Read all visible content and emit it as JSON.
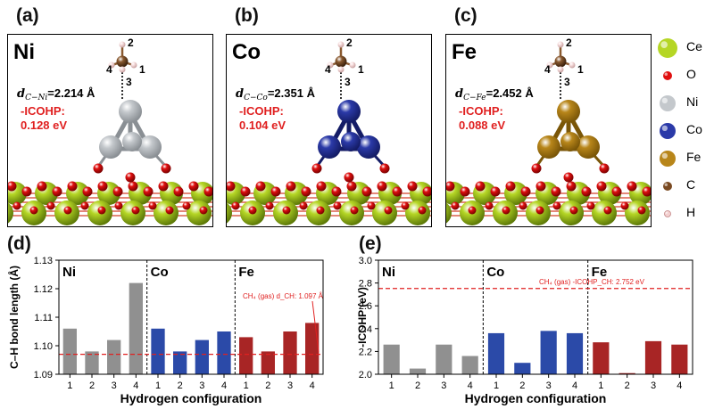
{
  "panels": [
    {
      "label": "(a)",
      "metal": "Ni",
      "dist_sym": "d",
      "dist_sub": "C−Ni",
      "dist_val": "=2.214 Å",
      "icohp_label": "-ICOHP:",
      "icohp_val": "0.128 eV",
      "cluster_color": "#c4c8cc",
      "cluster_dark": "#8a8f94",
      "h_labels": [
        "2",
        "4",
        "1",
        "3"
      ]
    },
    {
      "label": "(b)",
      "metal": "Co",
      "dist_sym": "d",
      "dist_sub": "C−Co",
      "dist_val": "=2.351 Å",
      "icohp_label": "-ICOHP:",
      "icohp_val": "0.104 eV",
      "cluster_color": "#2b3aa8",
      "cluster_dark": "#141c66",
      "h_labels": [
        "2",
        "4",
        "1",
        "3"
      ]
    },
    {
      "label": "(c)",
      "metal": "Fe",
      "dist_sym": "d",
      "dist_sub": "C−Fe",
      "dist_val": "=2.452 Å",
      "icohp_label": "-ICOHP:",
      "icohp_val": "0.088 eV",
      "cluster_color": "#b8861a",
      "cluster_dark": "#7a5608",
      "h_labels": [
        "2",
        "4",
        "1",
        "3"
      ]
    }
  ],
  "legend": [
    {
      "name": "Ce",
      "color": "#b5d625",
      "size": "large"
    },
    {
      "name": "O",
      "color": "#e01010",
      "size": "small"
    },
    {
      "name": "Ni",
      "color": "#c4c8cc",
      "size": "medium"
    },
    {
      "name": "Co",
      "color": "#2b3aa8",
      "size": "medium"
    },
    {
      "name": "Fe",
      "color": "#b8861a",
      "size": "medium"
    },
    {
      "name": "C",
      "color": "#7a4a22",
      "size": "small"
    },
    {
      "name": "H",
      "color": "#f3d0d0",
      "size": "tiny"
    }
  ],
  "chart_data": [
    {
      "panel_label": "(d)",
      "type": "bar",
      "ylabel": "C–H bond length (Å)",
      "xlabel": "Hydrogen configuration",
      "ylim": [
        1.09,
        1.13
      ],
      "yticks": [
        "1.09",
        "1.10",
        "1.11",
        "1.12",
        "1.13"
      ],
      "categories": [
        "1",
        "2",
        "3",
        "4"
      ],
      "groups": [
        "Ni",
        "Co",
        "Fe"
      ],
      "group_colors": [
        "#909090",
        "#2b4aa8",
        "#a82525"
      ],
      "series": [
        {
          "name": "Ni",
          "values": [
            1.106,
            1.098,
            1.102,
            1.122
          ]
        },
        {
          "name": "Co",
          "values": [
            1.106,
            1.098,
            1.102,
            1.105
          ]
        },
        {
          "name": "Fe",
          "values": [
            1.103,
            1.098,
            1.105,
            1.108
          ]
        }
      ],
      "reference": {
        "value": 1.097,
        "label": "CH₄ (gas) d_CH: 1.097 Å"
      }
    },
    {
      "panel_label": "(e)",
      "type": "bar",
      "ylabel": "-ICOHP (eV)",
      "xlabel": "Hydrogen configuration",
      "ylim": [
        2.0,
        3.0
      ],
      "yticks": [
        "2.0",
        "2.2",
        "2.4",
        "2.6",
        "2.8",
        "3.0"
      ],
      "categories": [
        "1",
        "2",
        "3",
        "4"
      ],
      "groups": [
        "Ni",
        "Co",
        "Fe"
      ],
      "group_colors": [
        "#909090",
        "#2b4aa8",
        "#a82525"
      ],
      "series": [
        {
          "name": "Ni",
          "values": [
            2.26,
            2.05,
            2.26,
            2.16
          ]
        },
        {
          "name": "Co",
          "values": [
            2.36,
            2.1,
            2.38,
            2.36
          ]
        },
        {
          "name": "Fe",
          "values": [
            2.28,
            2.01,
            2.29,
            2.26
          ]
        }
      ],
      "reference": {
        "value": 2.752,
        "label": "CH₄ (gas) -ICOHP_CH: 2.752 eV"
      }
    }
  ]
}
